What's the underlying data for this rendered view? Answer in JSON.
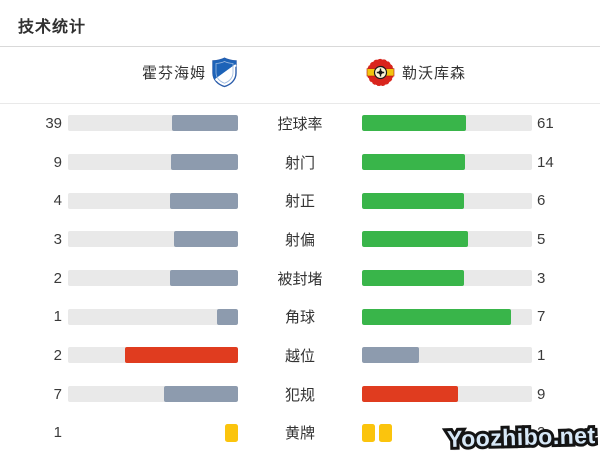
{
  "title": "技术统计",
  "watermark": "Yoozhibo.net",
  "teams": {
    "home": {
      "name": "霍芬海姆",
      "logo": "hoffenheim-badge-icon"
    },
    "away": {
      "name": "勒沃库森",
      "logo": "leverkusen-badge-icon"
    }
  },
  "colors": {
    "track": "#e9e9e9",
    "home_fill_gray": "#8d9bae",
    "away_fill_green": "#39b54a",
    "highlight_red": "#e03c1f",
    "yellow_card": "#fbc40d",
    "home_badge_blue": "#1d63b8",
    "away_badge_red": "#d9251d",
    "away_badge_yellow": "#f2c50f"
  },
  "chart_data": {
    "type": "bar",
    "orientation": "horizontal-paired",
    "title": "技术统计",
    "categories": [
      "控球率",
      "射门",
      "射正",
      "射偏",
      "被封堵",
      "角球",
      "越位",
      "犯规",
      "黄牌"
    ],
    "series": [
      {
        "name": "霍芬海姆",
        "values": [
          39,
          9,
          4,
          3,
          2,
          1,
          2,
          7,
          1
        ],
        "styles": [
          "gray",
          "gray",
          "gray",
          "gray",
          "gray",
          "gray",
          "red",
          "gray",
          "cards"
        ]
      },
      {
        "name": "勒沃库森",
        "values": [
          61,
          14,
          6,
          5,
          3,
          7,
          1,
          9,
          2
        ],
        "styles": [
          "green",
          "green",
          "green",
          "green",
          "green",
          "green",
          "gray",
          "red",
          "cards"
        ]
      }
    ],
    "bar_fill_rule": "fill fraction = value / (home + away); home bars anchored right, away bars anchored left",
    "legend_position": "top as team headers",
    "grid": false
  }
}
